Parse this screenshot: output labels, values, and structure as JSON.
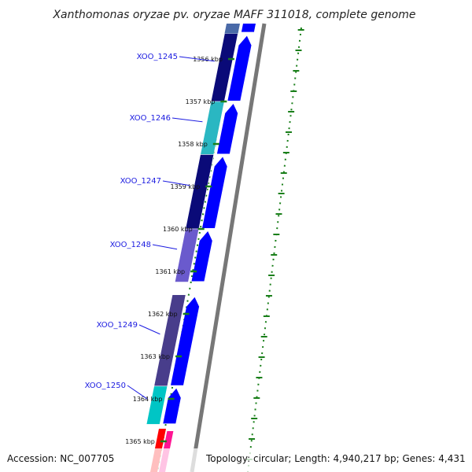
{
  "title": "Xanthomonas oryzae pv. oryzae MAFF 311018, complete genome",
  "accession": "Accession: NC_007705",
  "topology": "Topology: circular; Length: 4,940,217 bp; Genes: 4,431",
  "genes": [
    {
      "label": "XOO_1245",
      "start_kbp": 1355.4,
      "end_kbp": 1357.0,
      "color": "#0a0a78"
    },
    {
      "label": "XOO_1246",
      "start_kbp": 1357.0,
      "end_kbp": 1358.25,
      "color": "#2ab7c2"
    },
    {
      "label": "XOO_1247",
      "start_kbp": 1358.25,
      "end_kbp": 1360.0,
      "color": "#0a0a78"
    },
    {
      "label": "XOO_1248",
      "start_kbp": 1360.0,
      "end_kbp": 1361.25,
      "color": "#6a5acd"
    },
    {
      "label": "XOO_1249",
      "start_kbp": 1361.55,
      "end_kbp": 1363.7,
      "color": "#483d8b"
    },
    {
      "label": "XOO_1250",
      "start_kbp": 1363.7,
      "end_kbp": 1364.6,
      "color": "#00c5c5"
    }
  ],
  "cds_track_color": "#0000ff",
  "trna_track_colors": [
    "#ff0000",
    "#ff1493"
  ],
  "backbone_color": "#777777",
  "gc_track_color": "#1a7f1a",
  "ticks": [
    {
      "label": "1356 kbp",
      "kbp": 1356
    },
    {
      "label": "1357 kbp",
      "kbp": 1357
    },
    {
      "label": "1358 kbp",
      "kbp": 1358
    },
    {
      "label": "1359 kbp",
      "kbp": 1359
    },
    {
      "label": "1360 kbp",
      "kbp": 1360
    },
    {
      "label": "1361 kbp",
      "kbp": 1361
    },
    {
      "label": "1362 kbp",
      "kbp": 1362
    },
    {
      "label": "1363 kbp",
      "kbp": 1363
    },
    {
      "label": "1364 kbp",
      "kbp": 1364
    },
    {
      "label": "1365 kbp",
      "kbp": 1365
    }
  ]
}
